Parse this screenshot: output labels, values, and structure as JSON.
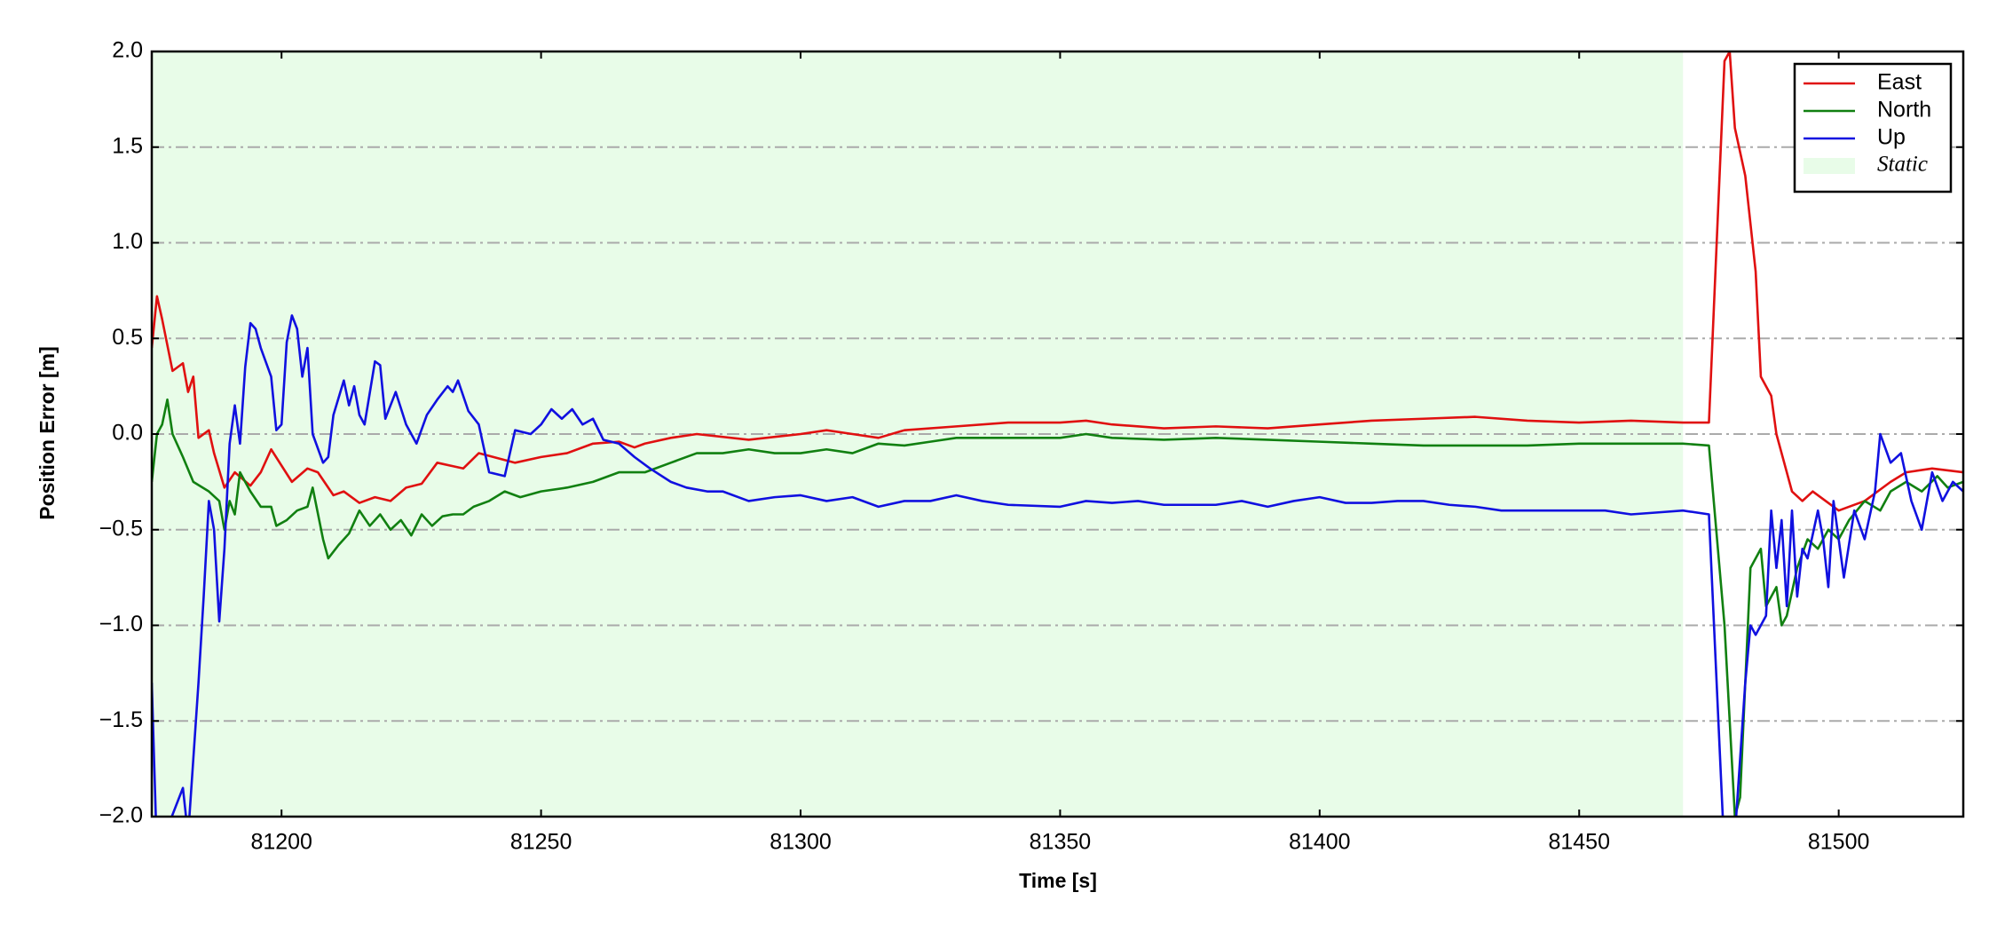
{
  "chart_data": {
    "type": "line",
    "xlabel": "Time [s]",
    "ylabel": "Position Error [m]",
    "xlim": [
      81175,
      81524
    ],
    "ylim": [
      -2,
      2
    ],
    "xticks": [
      81200,
      81250,
      81300,
      81350,
      81400,
      81450,
      81500
    ],
    "yticks": [
      {
        "value": -2,
        "label": "−2.0"
      },
      {
        "value": -1.5,
        "label": "−1.5"
      },
      {
        "value": -1,
        "label": "−1.0"
      },
      {
        "value": -0.5,
        "label": "−0.5"
      },
      {
        "value": 0,
        "label": "0.0"
      },
      0.5,
      {
        "value": 1,
        "label": "1.0"
      },
      1.5,
      {
        "value": 2,
        "label": "2.0"
      }
    ],
    "grid": true,
    "legend": "upper right",
    "shaded_regions": [
      {
        "name": "Static",
        "start": 81175,
        "end": 81470,
        "color": "#e8fce8"
      }
    ],
    "series": [
      {
        "name": "East",
        "color": "#e01010",
        "x": [
          81175,
          81176,
          81177,
          81179,
          81181,
          81182,
          81183,
          81184,
          81186,
          81187,
          81189,
          81191,
          81194,
          81196,
          81198,
          81202,
          81205,
          81207,
          81210,
          81212,
          81215,
          81218,
          81221,
          81224,
          81227,
          81230,
          81235,
          81238,
          81245,
          81250,
          81255,
          81260,
          81265,
          81268,
          81270,
          81275,
          81280,
          81290,
          81300,
          81305,
          81310,
          81315,
          81320,
          81330,
          81340,
          81350,
          81355,
          81360,
          81370,
          81380,
          81390,
          81400,
          81410,
          81420,
          81430,
          81440,
          81450,
          81460,
          81470,
          81475,
          81478,
          81479,
          81480,
          81482,
          81484,
          81485,
          81487,
          81488,
          81491,
          81493,
          81495,
          81500,
          81505,
          81510,
          81513,
          81518,
          81524
        ],
        "values": [
          0.45,
          0.72,
          0.6,
          0.33,
          0.37,
          0.22,
          0.3,
          -0.02,
          0.02,
          -0.1,
          -0.28,
          -0.2,
          -0.27,
          -0.2,
          -0.08,
          -0.25,
          -0.18,
          -0.2,
          -0.32,
          -0.3,
          -0.36,
          -0.33,
          -0.35,
          -0.28,
          -0.26,
          -0.15,
          -0.18,
          -0.1,
          -0.15,
          -0.12,
          -0.1,
          -0.05,
          -0.04,
          -0.07,
          -0.05,
          -0.02,
          0,
          -0.03,
          0,
          0.02,
          0,
          -0.02,
          0.02,
          0.04,
          0.06,
          0.06,
          0.07,
          0.05,
          0.03,
          0.04,
          0.03,
          0.05,
          0.07,
          0.08,
          0.09,
          0.07,
          0.06,
          0.07,
          0.06,
          0.06,
          1.95,
          2,
          1.6,
          1.35,
          0.85,
          0.3,
          0.2,
          0,
          -0.3,
          -0.35,
          -0.3,
          -0.4,
          -0.35,
          -0.25,
          -0.2,
          -0.18,
          -0.2
        ]
      },
      {
        "name": "North",
        "color": "#118011",
        "x": [
          81175,
          81176,
          81177,
          81178,
          81179,
          81181,
          81183,
          81186,
          81188,
          81189,
          81190,
          81191,
          81192,
          81194,
          81196,
          81198,
          81199,
          81201,
          81203,
          81205,
          81206,
          81208,
          81209,
          81211,
          81213,
          81215,
          81217,
          81219,
          81221,
          81223,
          81225,
          81227,
          81229,
          81231,
          81233,
          81235,
          81237,
          81240,
          81243,
          81246,
          81250,
          81255,
          81260,
          81265,
          81270,
          81275,
          81280,
          81285,
          81290,
          81295,
          81300,
          81305,
          81310,
          81315,
          81320,
          81325,
          81330,
          81340,
          81350,
          81355,
          81360,
          81370,
          81380,
          81390,
          81400,
          81410,
          81420,
          81430,
          81440,
          81450,
          81460,
          81470,
          81475,
          81478,
          81480,
          81481,
          81483,
          81485,
          81486,
          81488,
          81489,
          81490,
          81492,
          81494,
          81496,
          81498,
          81500,
          81502,
          81505,
          81508,
          81510,
          81513,
          81516,
          81519,
          81521,
          81524
        ],
        "values": [
          -0.25,
          0,
          0.05,
          0.18,
          0,
          -0.12,
          -0.25,
          -0.3,
          -0.35,
          -0.5,
          -0.35,
          -0.42,
          -0.2,
          -0.3,
          -0.38,
          -0.38,
          -0.48,
          -0.45,
          -0.4,
          -0.38,
          -0.28,
          -0.55,
          -0.65,
          -0.58,
          -0.52,
          -0.4,
          -0.48,
          -0.42,
          -0.5,
          -0.45,
          -0.53,
          -0.42,
          -0.48,
          -0.43,
          -0.42,
          -0.42,
          -0.38,
          -0.35,
          -0.3,
          -0.33,
          -0.3,
          -0.28,
          -0.25,
          -0.2,
          -0.2,
          -0.15,
          -0.1,
          -0.1,
          -0.08,
          -0.1,
          -0.1,
          -0.08,
          -0.1,
          -0.05,
          -0.06,
          -0.04,
          -0.02,
          -0.02,
          -0.02,
          0,
          -0.02,
          -0.03,
          -0.02,
          -0.03,
          -0.04,
          -0.05,
          -0.06,
          -0.06,
          -0.06,
          -0.05,
          -0.05,
          -0.05,
          -0.06,
          -1,
          -2,
          -1.9,
          -0.7,
          -0.6,
          -0.9,
          -0.8,
          -1,
          -0.95,
          -0.7,
          -0.55,
          -0.6,
          -0.5,
          -0.55,
          -0.45,
          -0.35,
          -0.4,
          -0.3,
          -0.25,
          -0.3,
          -0.22,
          -0.28,
          -0.25
        ]
      },
      {
        "name": "Up",
        "color": "#1010e0",
        "x": [
          81175,
          81176,
          81181,
          81182,
          81184,
          81185,
          81186,
          81187,
          81188,
          81189,
          81190,
          81191,
          81192,
          81193,
          81194,
          81195,
          81196,
          81198,
          81199,
          81200,
          81201,
          81202,
          81203,
          81204,
          81205,
          81206,
          81208,
          81209,
          81210,
          81212,
          81213,
          81214,
          81215,
          81216,
          81218,
          81219,
          81220,
          81222,
          81224,
          81226,
          81228,
          81230,
          81232,
          81233,
          81234,
          81236,
          81238,
          81240,
          81243,
          81245,
          81248,
          81250,
          81252,
          81254,
          81256,
          81258,
          81260,
          81262,
          81265,
          81268,
          81271,
          81275,
          81278,
          81282,
          81285,
          81290,
          81295,
          81300,
          81305,
          81310,
          81315,
          81320,
          81325,
          81330,
          81335,
          81340,
          81350,
          81355,
          81360,
          81365,
          81370,
          81380,
          81385,
          81390,
          81395,
          81400,
          81405,
          81410,
          81415,
          81420,
          81425,
          81430,
          81435,
          81440,
          81450,
          81455,
          81460,
          81465,
          81470,
          81475,
          81478,
          81480,
          81482,
          81483,
          81484,
          81486,
          81487,
          81488,
          81489,
          81490,
          81491,
          81492,
          81493,
          81494,
          81496,
          81497,
          81498,
          81499,
          81501,
          81503,
          81505,
          81507,
          81508,
          81510,
          81512,
          81514,
          81516,
          81518,
          81520,
          81522,
          81524
        ],
        "values": [
          -1.3,
          -2.2,
          -1.85,
          -2.1,
          -1.3,
          -0.85,
          -0.35,
          -0.5,
          -0.98,
          -0.6,
          -0.05,
          0.15,
          -0.05,
          0.35,
          0.58,
          0.55,
          0.45,
          0.3,
          0.02,
          0.05,
          0.48,
          0.62,
          0.55,
          0.3,
          0.45,
          0,
          -0.15,
          -0.12,
          0.1,
          0.28,
          0.15,
          0.25,
          0.1,
          0.05,
          0.38,
          0.36,
          0.08,
          0.22,
          0.05,
          -0.05,
          0.1,
          0.18,
          0.25,
          0.22,
          0.28,
          0.12,
          0.05,
          -0.2,
          -0.22,
          0.02,
          0,
          0.05,
          0.13,
          0.08,
          0.13,
          0.05,
          0.08,
          -0.03,
          -0.05,
          -0.12,
          -0.18,
          -0.25,
          -0.28,
          -0.3,
          -0.3,
          -0.35,
          -0.33,
          -0.32,
          -0.35,
          -0.33,
          -0.38,
          -0.35,
          -0.35,
          -0.32,
          -0.35,
          -0.37,
          -0.38,
          -0.35,
          -0.36,
          -0.35,
          -0.37,
          -0.37,
          -0.35,
          -0.38,
          -0.35,
          -0.33,
          -0.36,
          -0.36,
          -0.35,
          -0.35,
          -0.37,
          -0.38,
          -0.4,
          -0.4,
          -0.4,
          -0.4,
          -0.42,
          -0.41,
          -0.4,
          -0.42,
          -2.2,
          -2.1,
          -1.3,
          -1,
          -1.05,
          -0.95,
          -0.4,
          -0.7,
          -0.45,
          -0.9,
          -0.4,
          -0.85,
          -0.6,
          -0.65,
          -0.4,
          -0.55,
          -0.8,
          -0.35,
          -0.75,
          -0.4,
          -0.55,
          -0.3,
          0,
          -0.15,
          -0.1,
          -0.35,
          -0.5,
          -0.2,
          -0.35,
          -0.25,
          -0.3
        ]
      }
    ]
  }
}
